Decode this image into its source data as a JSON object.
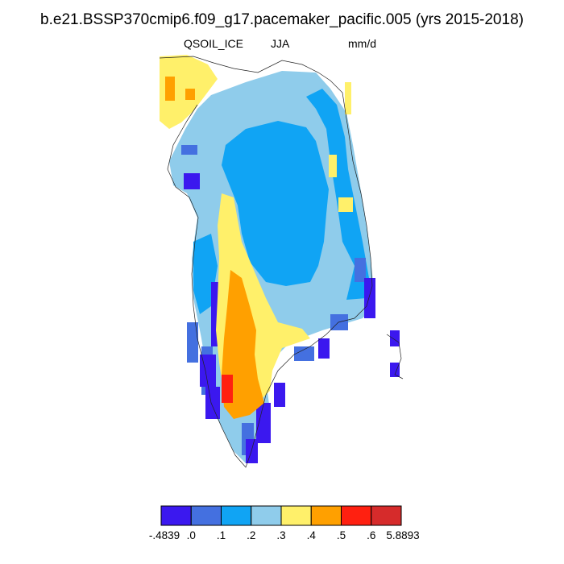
{
  "title": "b.e21.BSSP370cmip6.f09_g17.pacemaker_pacific.005 (yrs 2015-2018)",
  "variable": "QSOIL_ICE",
  "season": "JJA",
  "units": "mm/d",
  "colorbar": {
    "colors": [
      "#3b18ef",
      "#4470e0",
      "#10a4f4",
      "#8fcceb",
      "#fff06a",
      "#ffa000",
      "#ff2010",
      "#d62b2b"
    ],
    "labels": [
      "-.4839",
      ".0",
      ".1",
      ".2",
      ".3",
      ".4",
      ".5",
      ".6",
      "5.8893"
    ]
  }
}
